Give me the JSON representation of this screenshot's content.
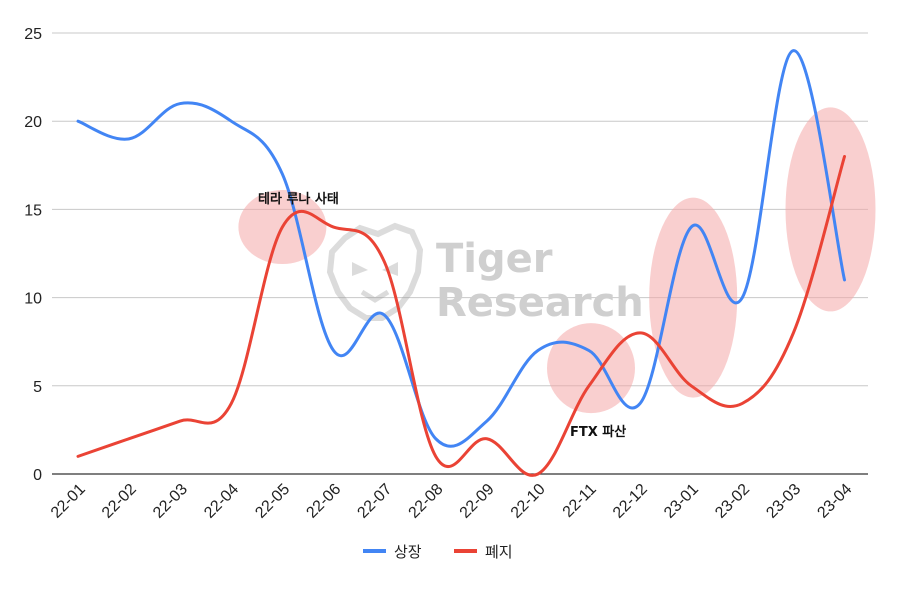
{
  "chart_data": {
    "type": "line",
    "title": "",
    "xlabel": "",
    "ylabel": "",
    "categories": [
      "22-01",
      "22-02",
      "22-03",
      "22-04",
      "22-05",
      "22-06",
      "22-07",
      "22-08",
      "22-09",
      "22-10",
      "22-11",
      "22-12",
      "23-01",
      "23-02",
      "23-03",
      "23-04"
    ],
    "y_ticks": [
      "0",
      "5",
      "10",
      "15",
      "20",
      "25"
    ],
    "ylim": [
      0,
      25
    ],
    "grid": true,
    "legend_position": "bottom",
    "series": [
      {
        "name": "상장",
        "color": "#4285f4",
        "values": [
          20,
          19,
          21,
          20,
          17,
          7,
          9,
          2,
          3,
          7,
          7,
          4,
          14,
          10,
          24,
          11
        ]
      },
      {
        "name": "폐지",
        "color": "#ea4335",
        "values": [
          1,
          2,
          3,
          4,
          14,
          14,
          12,
          1,
          2,
          0,
          5,
          8,
          5,
          4,
          8,
          18
        ]
      }
    ],
    "annotations": [
      {
        "text": "테라 루나 사태",
        "at": "22-05"
      },
      {
        "text": "FTX 파산",
        "at": "22-11"
      }
    ],
    "highlights": [
      {
        "at": "22-05",
        "y": 14
      },
      {
        "at": "22-11",
        "y": 6
      },
      {
        "at": "23-01",
        "y": 10
      },
      {
        "at": "23-04",
        "y": 15
      }
    ]
  },
  "watermark": {
    "line1": "Tiger",
    "line2": "Research"
  }
}
